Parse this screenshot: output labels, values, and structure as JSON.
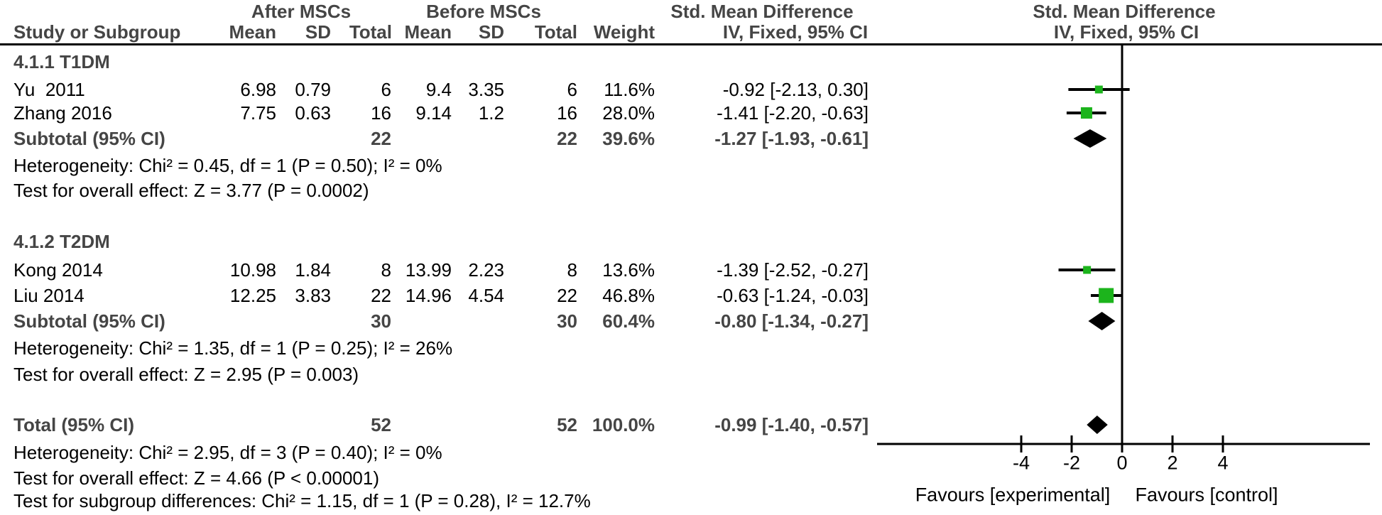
{
  "header": {
    "row1": {
      "after": "After MSCs",
      "before": "Before MSCs",
      "smd": "Std. Mean Difference"
    },
    "row2": {
      "study": "Study or Subgroup",
      "mean": "Mean",
      "sd": "SD",
      "total": "Total",
      "weight": "Weight",
      "ci_method": "IV, Fixed, 95% CI"
    }
  },
  "axis": {
    "tick_values": [
      -4,
      -2,
      0,
      2,
      4
    ],
    "favours_left": "Favours [experimental]",
    "favours_right": "Favours [control]"
  },
  "colors": {
    "square_green": "#1CB41C",
    "diamond_black": "#000000",
    "bold_gray": "#454545",
    "line_black": "#000000"
  },
  "chart_data": {
    "type": "scatter",
    "subtype": "forest-plot",
    "effect_measure": "Std. Mean Difference",
    "method": "IV, Fixed, 95% CI",
    "x_axis": {
      "ticks": [
        -4,
        -2,
        0,
        2,
        4
      ],
      "zero_reference": 0
    },
    "groups": [
      {
        "name": "4.1.1 T1DM",
        "studies": [
          {
            "study": "Yu  2011",
            "after_mean": "6.98",
            "after_sd": "0.79",
            "after_total": "6",
            "before_mean": "9.4",
            "before_sd": "3.35",
            "before_total": "6",
            "weight_pct": 11.6,
            "smd": -0.92,
            "ci_low": -2.13,
            "ci_high": 0.3,
            "ci_label": "-0.92 [-2.13, 0.30]"
          },
          {
            "study": "Zhang 2016",
            "after_mean": "7.75",
            "after_sd": "0.63",
            "after_total": "16",
            "before_mean": "9.14",
            "before_sd": "1.2",
            "before_total": "16",
            "weight_pct": 28.0,
            "smd": -1.41,
            "ci_low": -2.2,
            "ci_high": -0.63,
            "ci_label": "-1.41 [-2.20, -0.63]"
          }
        ],
        "subtotal": {
          "label": "Subtotal (95% CI)",
          "after_total": "22",
          "before_total": "22",
          "weight_pct": 39.6,
          "smd": -1.27,
          "ci_low": -1.93,
          "ci_high": -0.61,
          "ci_label": "-1.27 [-1.93, -0.61]"
        },
        "heterogeneity": "Heterogeneity: Chi² = 0.45, df = 1 (P = 0.50); I² = 0%",
        "overall_effect": "Test for overall effect: Z = 3.77 (P = 0.0002)"
      },
      {
        "name": "4.1.2 T2DM",
        "studies": [
          {
            "study": "Kong 2014",
            "after_mean": "10.98",
            "after_sd": "1.84",
            "after_total": "8",
            "before_mean": "13.99",
            "before_sd": "2.23",
            "before_total": "8",
            "weight_pct": 13.6,
            "smd": -1.39,
            "ci_low": -2.52,
            "ci_high": -0.27,
            "ci_label": "-1.39 [-2.52, -0.27]"
          },
          {
            "study": "Liu 2014",
            "after_mean": "12.25",
            "after_sd": "3.83",
            "after_total": "22",
            "before_mean": "14.96",
            "before_sd": "4.54",
            "before_total": "22",
            "weight_pct": 46.8,
            "smd": -0.63,
            "ci_low": -1.24,
            "ci_high": -0.03,
            "ci_label": "-0.63 [-1.24, -0.03]"
          }
        ],
        "subtotal": {
          "label": "Subtotal (95% CI)",
          "after_total": "30",
          "before_total": "30",
          "weight_pct": 60.4,
          "smd": -0.8,
          "ci_low": -1.34,
          "ci_high": -0.27,
          "ci_label": "-0.80 [-1.34, -0.27]"
        },
        "heterogeneity": "Heterogeneity: Chi² = 1.35, df = 1 (P = 0.25); I² = 26%",
        "overall_effect": "Test for overall effect: Z = 2.95 (P = 0.003)"
      }
    ],
    "total": {
      "label": "Total (95% CI)",
      "after_total": "52",
      "before_total": "52",
      "weight_pct": 100.0,
      "smd": -0.99,
      "ci_low": -1.4,
      "ci_high": -0.57,
      "ci_label": "-0.99 [-1.40, -0.57]"
    },
    "total_heterogeneity": "Heterogeneity: Chi² = 2.95, df = 3 (P = 0.40); I² = 0%",
    "total_overall_effect": "Test for overall effect: Z = 4.66 (P < 0.00001)",
    "subgroup_differences": "Test for subgroup differences: Chi² = 1.15, df = 1 (P = 0.28), I² = 12.7%"
  }
}
